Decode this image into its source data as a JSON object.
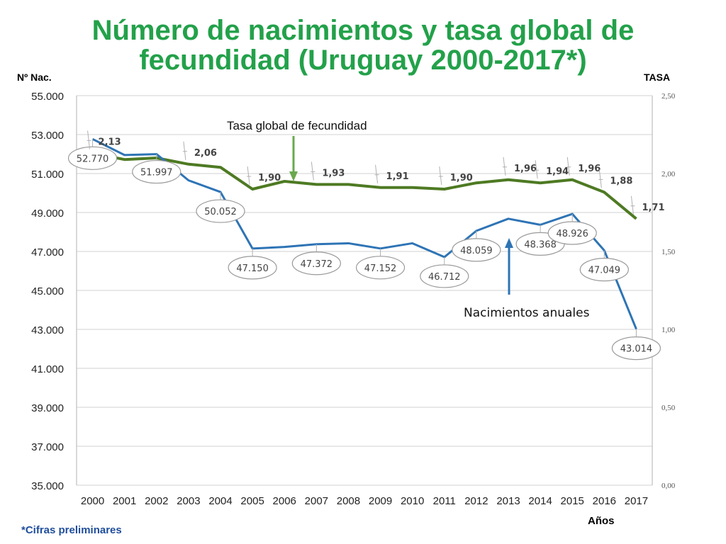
{
  "title_line1": "Número de nacimientos y tasa global de",
  "title_line2": "fecundidad (Uruguay 2000-2017*)",
  "y_left_title": "Nº Nac.",
  "y_right_title": "TASA",
  "x_title": "Años",
  "footnote": "*Cifras preliminares",
  "colors": {
    "title": "#23a14a",
    "births": "#2e74b5",
    "tfr": "#4e7a23",
    "grid": "#d9d9d9",
    "footnote": "#1f4e9c"
  },
  "chart_data": {
    "type": "line",
    "x": [
      "2000",
      "2001",
      "2002",
      "2003",
      "2004",
      "2005",
      "2006",
      "2007",
      "2008",
      "2009",
      "2010",
      "2011",
      "2012",
      "2013",
      "2014",
      "2015",
      "2016",
      "2017"
    ],
    "ylim_left": [
      35000,
      55000
    ],
    "ylim_right": [
      0,
      2.5
    ],
    "left_ticks": [
      "35.000",
      "37.000",
      "39.000",
      "41.000",
      "43.000",
      "45.000",
      "47.000",
      "49.000",
      "51.000",
      "53.000",
      "55.000"
    ],
    "right_ticks": [
      "0,00",
      "0,50",
      "1,00",
      "1,50",
      "2,00",
      "2,50"
    ],
    "series": [
      {
        "name": "Nacimientos anuales",
        "axis": "left",
        "values": [
          52770,
          51950,
          51997,
          50650,
          50052,
          47150,
          47230,
          47372,
          47420,
          47152,
          47420,
          46712,
          48059,
          48680,
          48368,
          48926,
          47049,
          43014
        ]
      },
      {
        "name": "Tasa global de fecundidad",
        "axis": "right",
        "values": [
          2.13,
          2.09,
          2.1,
          2.06,
          2.04,
          1.9,
          1.95,
          1.93,
          1.93,
          1.91,
          1.91,
          1.9,
          1.94,
          1.96,
          1.94,
          1.96,
          1.88,
          1.71
        ]
      }
    ],
    "births_labels": [
      {
        "i": 0,
        "text": "52.770"
      },
      {
        "i": 2,
        "text": "51.997"
      },
      {
        "i": 4,
        "text": "50.052"
      },
      {
        "i": 5,
        "text": "47.150"
      },
      {
        "i": 7,
        "text": "47.372"
      },
      {
        "i": 9,
        "text": "47.152"
      },
      {
        "i": 11,
        "text": "46.712"
      },
      {
        "i": 12,
        "text": "48.059"
      },
      {
        "i": 14,
        "text": "48.368"
      },
      {
        "i": 15,
        "text": "48.926"
      },
      {
        "i": 16,
        "text": "47.049"
      },
      {
        "i": 17,
        "text": "43.014"
      }
    ],
    "tfr_labels": [
      {
        "i": 0,
        "text": "2,13"
      },
      {
        "i": 3,
        "text": "2,06"
      },
      {
        "i": 5,
        "text": "1,90"
      },
      {
        "i": 7,
        "text": "1,93"
      },
      {
        "i": 9,
        "text": "1,91"
      },
      {
        "i": 11,
        "text": "1,90"
      },
      {
        "i": 13,
        "text": "1,96"
      },
      {
        "i": 14,
        "text": "1,94"
      },
      {
        "i": 15,
        "text": "1,96"
      },
      {
        "i": 16,
        "text": "1,88"
      },
      {
        "i": 17,
        "text": "1,71"
      }
    ],
    "annotations": {
      "tfr": "Tasa global de fecundidad",
      "births": "Nacimientos anuales"
    }
  }
}
